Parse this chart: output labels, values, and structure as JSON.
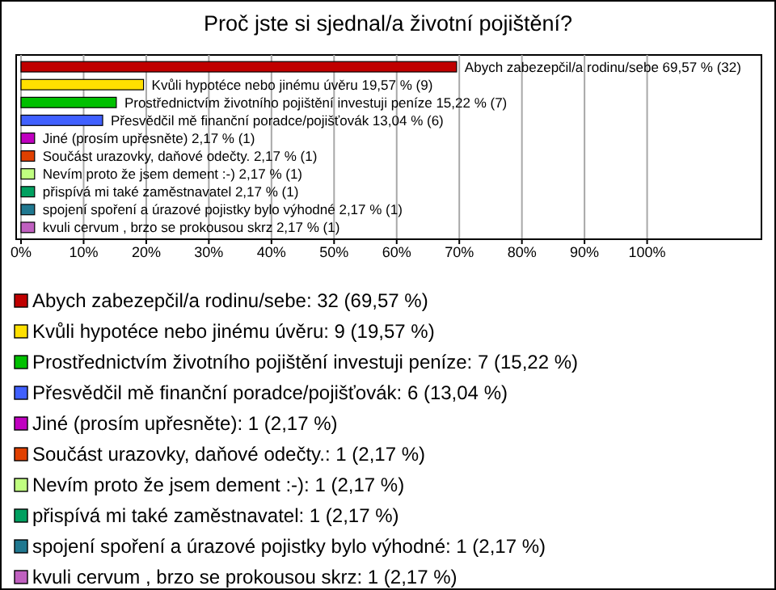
{
  "chart_data": {
    "type": "bar",
    "orientation": "horizontal",
    "title": "Proč jste si sjednal/a životní pojištění?",
    "categories": [
      null,
      null,
      null,
      null,
      null,
      null,
      null,
      null,
      null,
      null
    ],
    "values": [
      69.57,
      19.57,
      15.22,
      13.04,
      2.17,
      2.17,
      2.17,
      2.17,
      2.17,
      2.17
    ],
    "colors": [
      "#c00000",
      "#ffe000",
      "#00c000",
      "#4060ff",
      "#c000c0",
      "#e04000",
      "#c0ff80",
      "#00a060",
      "#207890",
      "#c060c0"
    ],
    "value_labels": [
      "Abych zabezepčil/a rodinu/sebe 69,57 % (32)",
      "Kvůli hypotéce nebo jinému úvěru 19,57 % (9)",
      "Prostřednictvím životního pojištění investuji peníze 15,22 % (7)",
      "Přesvědčil mě finanční poradce/pojišťovák 13,04 % (6)",
      "Jiné (prosím upřesněte) 2,17 % (1)",
      "Součást urazovky, daňové odečty. 2,17 % (1)",
      "Nevím proto že jsem dement :-) 2,17 % (1)",
      "přispívá mi také zaměstnavatel 2,17 % (1)",
      "spojení spoření a úrazové pojistky bylo výhodné 2,17 % (1)",
      "kvuli cervum , brzo se prokousou skrz 2,17 % (1)"
    ],
    "annotations": [
      "Abych zabezepčil/a rodinu/sebe: 32 (69,57 %)",
      "Kvůli hypotéce nebo jinému úvěru: 9 (19,57 %)",
      "Prostřednictvím životního pojištění investuji peníze: 7 (15,22 %)",
      "Přesvědčil mě finanční poradce/pojišťovák: 6 (13,04 %)",
      "Jiné (prosím upřesněte): 1 (2,17 %)",
      "Součást urazovky, daňové odečty.: 1 (2,17 %)",
      "Nevím proto že jsem dement :-): 1 (2,17 %)",
      "přispívá mi také zaměstnavatel: 1 (2,17 %)",
      "spojení spoření a úrazové pojistky bylo výhodné: 1 (2,17 %)",
      "kvuli cervum , brzo se prokousou skrz: 1 (2,17 %)"
    ],
    "xlim": [
      0,
      118
    ],
    "xticks": [
      {
        "value": 0,
        "label": "0%"
      },
      {
        "value": 10,
        "label": "10%"
      },
      {
        "value": 20,
        "label": "20%"
      },
      {
        "value": 30,
        "label": "30%"
      },
      {
        "value": 40,
        "label": "40%"
      },
      {
        "value": 50,
        "label": "50%"
      },
      {
        "value": 60,
        "label": "60%"
      },
      {
        "value": 70,
        "label": "70%"
      },
      {
        "value": 80,
        "label": "80%"
      },
      {
        "value": 90,
        "label": "90%"
      },
      {
        "value": 100,
        "label": "100%"
      }
    ],
    "grid": "x",
    "tick_labels": "x"
  }
}
